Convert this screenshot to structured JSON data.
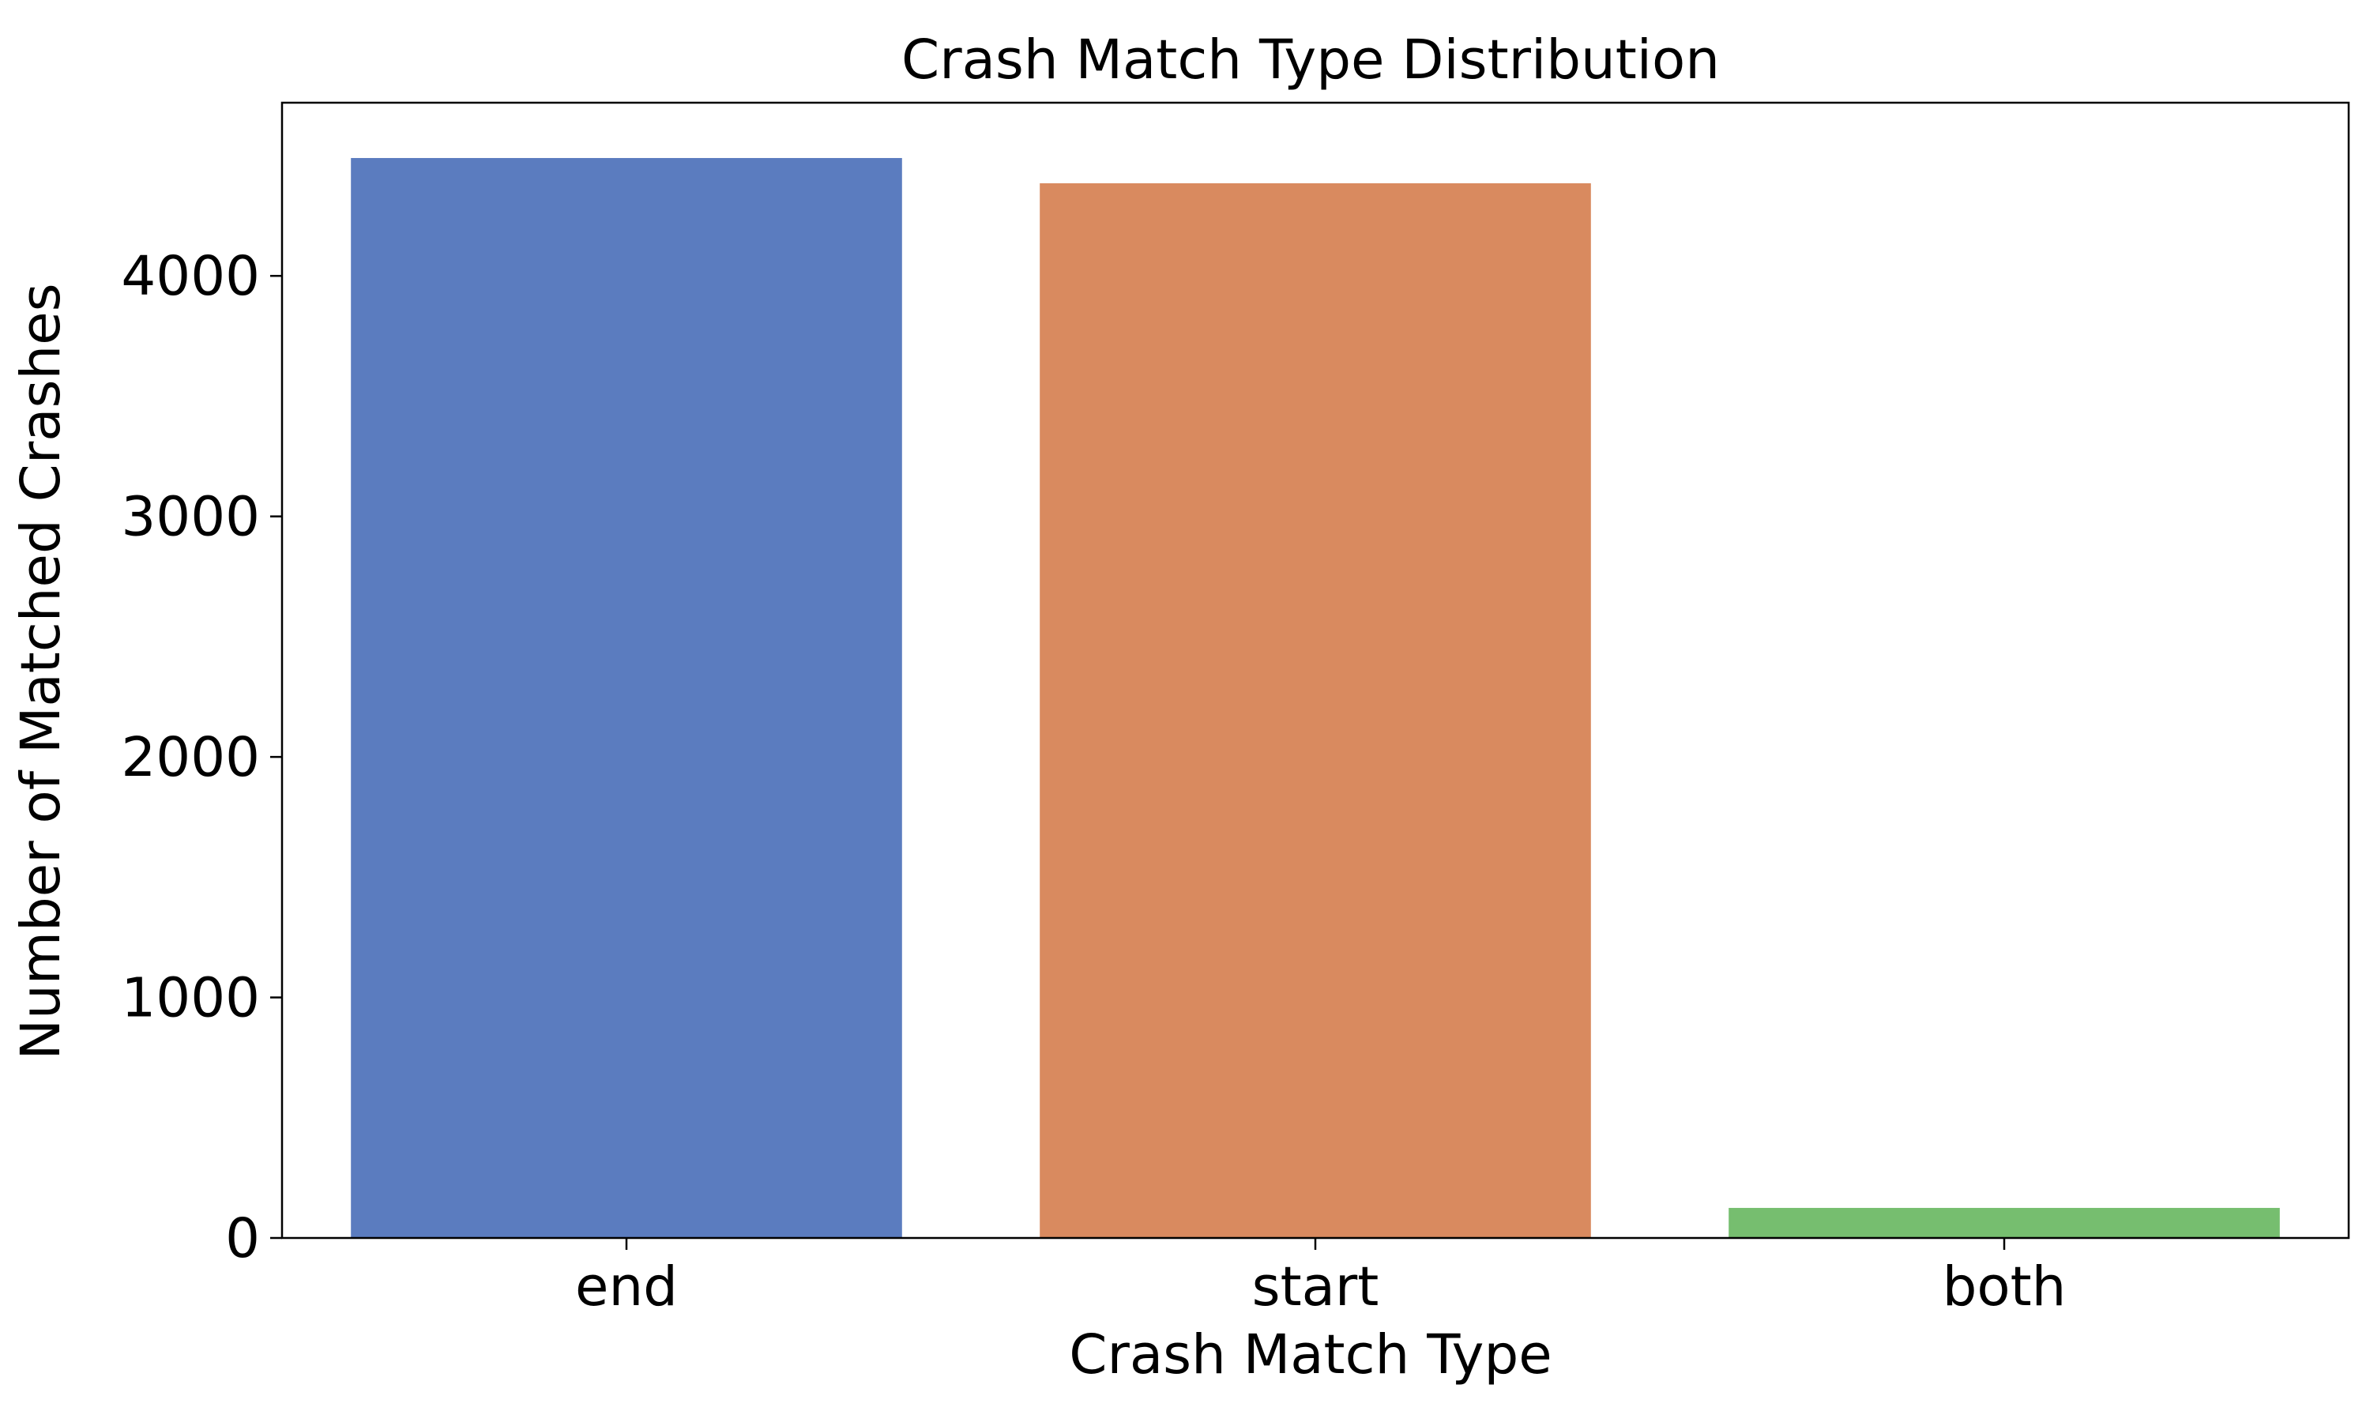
{
  "chart_data": {
    "type": "bar",
    "title": "Crash Match Type Distribution",
    "xlabel": "Crash Match Type",
    "ylabel": "Number of Matched Crashes",
    "categories": [
      "end",
      "start",
      "both"
    ],
    "values": [
      4490,
      4385,
      125
    ],
    "colors": [
      "#5b7cbf",
      "#d98a5f",
      "#76be6f"
    ],
    "ylim": [
      0,
      4720
    ],
    "yticks": [
      0,
      1000,
      2000,
      3000,
      4000
    ],
    "grid": false,
    "legend": "none"
  }
}
